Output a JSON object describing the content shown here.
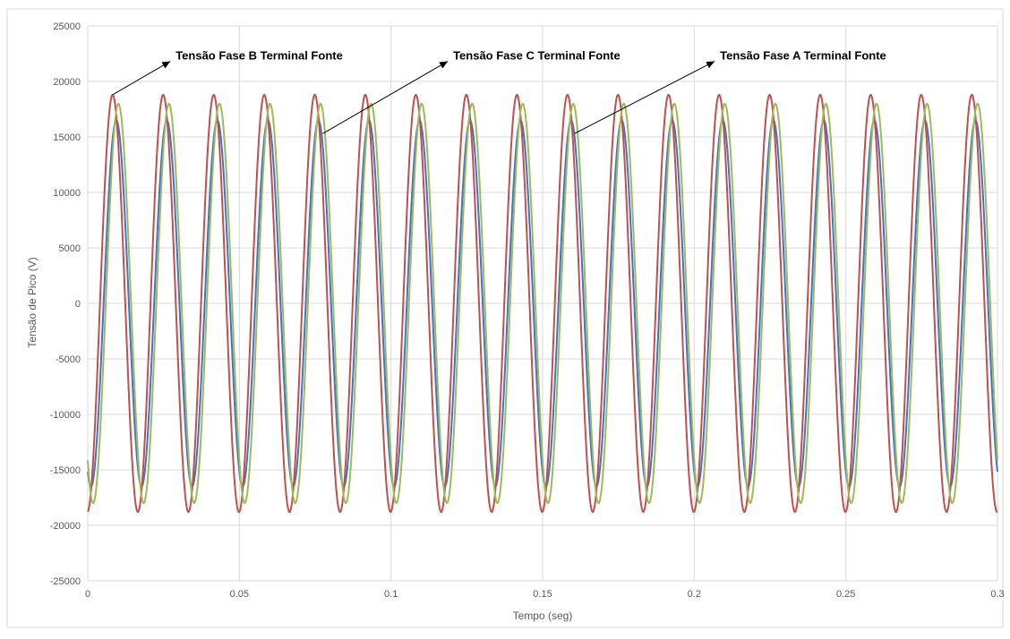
{
  "chart_data": {
    "type": "line",
    "title": "",
    "xlabel": "Tempo (seg)",
    "ylabel": "Tensão de Pico (V)",
    "xlim": [
      0,
      0.3
    ],
    "ylim": [
      -25000,
      25000
    ],
    "x_ticks": [
      "0",
      "0.05",
      "0.1",
      "0.15",
      "0.2",
      "0.25",
      "0.3"
    ],
    "y_ticks": [
      "25000",
      "20000",
      "15000",
      "10000",
      "5000",
      "0",
      "-5000",
      "-10000",
      "-15000",
      "-20000",
      "-25000"
    ],
    "grid": true,
    "legend": "none",
    "frequency_hz": 60,
    "series": [
      {
        "key": "fase_a",
        "color": "#4472C4",
        "amplitude": 16500,
        "phase_shift_s": 0.0094,
        "x": [
          0,
          0.0011,
          0.0052,
          0.0094,
          0.0136,
          0.0177,
          0.3
        ],
        "y": [
          -14700,
          -16500,
          0,
          16500,
          0,
          -16500,
          -14800
        ]
      },
      {
        "key": "fase_b",
        "color": "#C0504D",
        "amplitude": 18800,
        "phase_shift_s": 0.0082,
        "x": [
          0,
          0.0041,
          0.0082,
          0.0124,
          0.0165,
          0.3
        ],
        "y": [
          -18800,
          0,
          18800,
          0,
          -18800,
          -18700
        ]
      },
      {
        "key": "fase_c",
        "color": "#9BBB59",
        "amplitude": 18000,
        "phase_shift_s": 0.0101,
        "x": [
          0,
          0.0018,
          0.006,
          0.0101,
          0.0143,
          0.0185,
          0.3
        ],
        "y": [
          -16200,
          -18000,
          0,
          18000,
          0,
          -18000,
          -15000
        ]
      }
    ],
    "annotations": [
      {
        "text": "Tensão Fase B Terminal Fonte",
        "points_to": "fase_b",
        "target_x": 0.0082,
        "target_y": 18800,
        "label_x": 0.029,
        "label_y": 22300
      },
      {
        "text": "Tensão Fase C Terminal Fonte",
        "points_to": "fase_c",
        "target_x": 0.0775,
        "target_y": 15300,
        "label_x": 0.1205,
        "label_y": 22300
      },
      {
        "text": "Tensão Fase A Terminal Fonte",
        "points_to": "fase_a",
        "target_x": 0.1605,
        "target_y": 15300,
        "label_x": 0.2085,
        "label_y": 22300
      }
    ]
  }
}
